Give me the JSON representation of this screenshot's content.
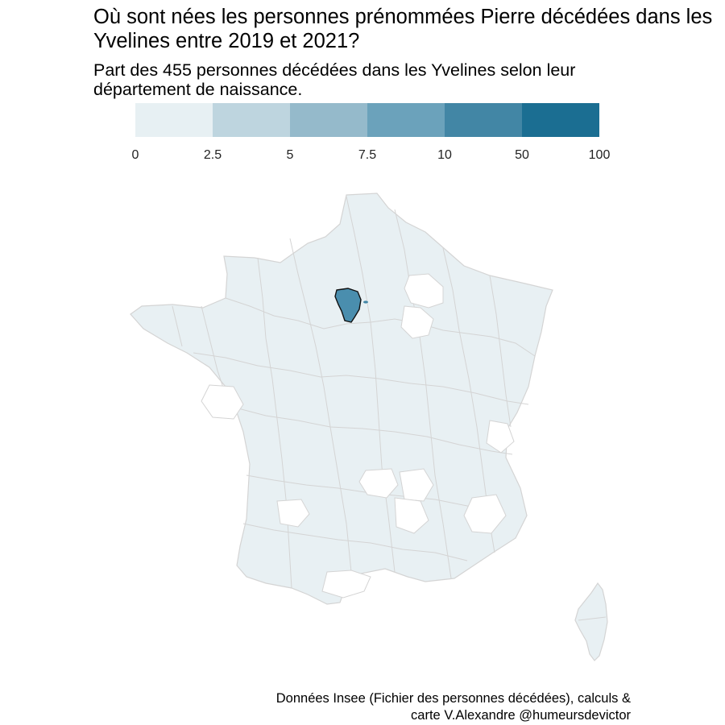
{
  "title": "Où sont nées les personnes prénommées Pierre décédées dans les Yvelines entre 2019 et 2021?",
  "subtitle": "Part des 455 personnes décédées dans les Yvelines selon leur département de naissance.",
  "caption": "Données Insee (Fichier des personnes décédées), calculs &\ncarte V.Alexandre @humeursdevictor",
  "legend": {
    "breaks": [
      "0",
      "2.5",
      "5",
      "7.5",
      "10",
      "50",
      "100"
    ],
    "colors": [
      "#e7f0f3",
      "#bed5df",
      "#95bacb",
      "#6ba2bb",
      "#4286a5",
      "#1b6e92"
    ]
  },
  "map": {
    "default_fill": "#e8f0f3",
    "border_color": "#d4d4d4",
    "nodata_fill": "#ffffff",
    "highlight": {
      "name": "Yvelines",
      "fill": "#4a8eae",
      "outline": "#111111"
    },
    "island": "Corse"
  }
}
